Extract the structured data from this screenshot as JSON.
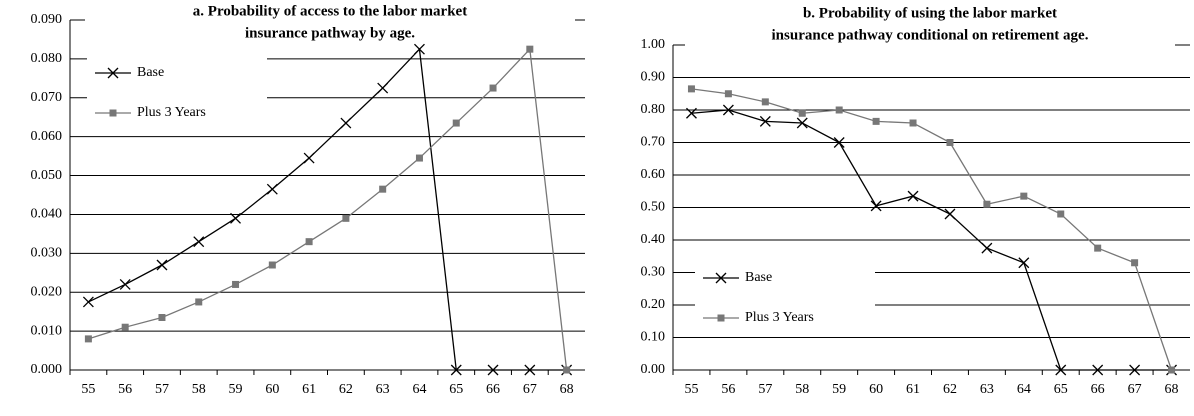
{
  "chart_data": [
    {
      "type": "line",
      "title": [
        "a. Probability of access to the labor market",
        "insurance pathway by age."
      ],
      "categories": [
        "55",
        "56",
        "57",
        "58",
        "59",
        "60",
        "61",
        "62",
        "63",
        "64",
        "65",
        "66",
        "67",
        "68"
      ],
      "series": [
        {
          "name": "Base",
          "color": "#000000",
          "marker": "x",
          "values": [
            0.0175,
            0.022,
            0.027,
            0.033,
            0.039,
            0.0465,
            0.0545,
            0.0635,
            0.0725,
            0.0825,
            0,
            0,
            0,
            0
          ]
        },
        {
          "name": "Plus 3 Years",
          "color": "#777777",
          "marker": "square",
          "values": [
            0.008,
            0.011,
            0.0135,
            0.0175,
            0.022,
            0.027,
            0.033,
            0.039,
            0.0465,
            0.0545,
            0.0635,
            0.0725,
            0.0825,
            0
          ]
        }
      ],
      "ylim": [
        0,
        0.09
      ],
      "yticks": [
        {
          "value": 0,
          "label": "0.000"
        },
        {
          "value": 0.01,
          "label": "0.010"
        },
        {
          "value": 0.02,
          "label": "0.020"
        },
        {
          "value": 0.03,
          "label": "0.030"
        },
        {
          "value": 0.04,
          "label": "0.040"
        },
        {
          "value": 0.05,
          "label": "0.050"
        },
        {
          "value": 0.06,
          "label": "0.060"
        },
        {
          "value": 0.07,
          "label": "0.070"
        },
        {
          "value": 0.08,
          "label": "0.080"
        },
        {
          "value": 0.09,
          "label": "0.090"
        }
      ],
      "grid": true,
      "legend": "upper left"
    },
    {
      "type": "line",
      "title": [
        "b. Probability of using the labor market",
        "insurance pathway conditional on retirement age."
      ],
      "categories": [
        "55",
        "56",
        "57",
        "58",
        "59",
        "60",
        "61",
        "62",
        "63",
        "64",
        "65",
        "66",
        "67",
        "68"
      ],
      "series": [
        {
          "name": "Base",
          "color": "#000000",
          "marker": "x",
          "values": [
            0.79,
            0.8,
            0.765,
            0.76,
            0.7,
            0.505,
            0.535,
            0.48,
            0.375,
            0.33,
            0,
            0,
            0,
            0
          ]
        },
        {
          "name": "Plus 3 Years",
          "color": "#777777",
          "marker": "square",
          "values": [
            0.865,
            0.85,
            0.825,
            0.79,
            0.8,
            0.765,
            0.76,
            0.7,
            0.51,
            0.535,
            0.48,
            0.375,
            0.33,
            0
          ]
        }
      ],
      "ylim": [
        0,
        1
      ],
      "yticks": [
        {
          "value": 0,
          "label": "0.00"
        },
        {
          "value": 0.1,
          "label": "0.10"
        },
        {
          "value": 0.2,
          "label": "0.20"
        },
        {
          "value": 0.3,
          "label": "0.30"
        },
        {
          "value": 0.4,
          "label": "0.40"
        },
        {
          "value": 0.5,
          "label": "0.50"
        },
        {
          "value": 0.6,
          "label": "0.60"
        },
        {
          "value": 0.7,
          "label": "0.70"
        },
        {
          "value": 0.8,
          "label": "0.80"
        },
        {
          "value": 0.9,
          "label": "0.90"
        },
        {
          "value": 1,
          "label": "1.00"
        }
      ],
      "grid": true,
      "legend": "lower left"
    }
  ]
}
